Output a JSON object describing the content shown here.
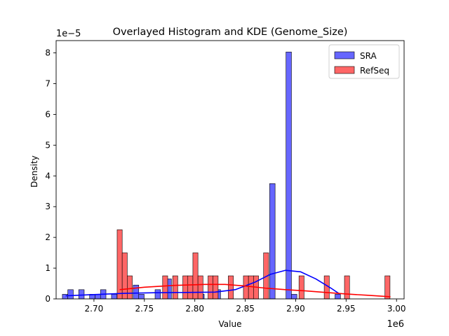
{
  "chart_data": {
    "type": "histogram",
    "title": "Overlayed Histogram and KDE (Genome_Size)",
    "xlabel": "Value",
    "ylabel": "Density",
    "x_scale_label": "1e6",
    "y_scale_label": "1e−5",
    "xlim": [
      2.6625,
      3.0075
    ],
    "ylim": [
      0,
      8.4
    ],
    "x_ticks": [
      2.7,
      2.75,
      2.8,
      2.85,
      2.9,
      2.95,
      3.0
    ],
    "x_tick_labels": [
      "2.70",
      "2.75",
      "2.80",
      "2.85",
      "2.90",
      "2.95",
      "3.00"
    ],
    "y_ticks": [
      0,
      1,
      2,
      3,
      4,
      5,
      6,
      7,
      8
    ],
    "y_tick_labels": [
      "0",
      "1",
      "2",
      "3",
      "4",
      "5",
      "6",
      "7",
      "8"
    ],
    "legend_position": "top-right",
    "grid": false,
    "series": [
      {
        "name": "SRA",
        "color": "#0000ff",
        "fill_color": "#6666ff",
        "bin_width": 0.00541,
        "bins": [
          [
            2.6714,
            0.15
          ],
          [
            2.6768,
            0.3
          ],
          [
            2.6876,
            0.3
          ],
          [
            2.6984,
            0.15
          ],
          [
            2.7038,
            0.15
          ],
          [
            2.7092,
            0.3
          ],
          [
            2.7201,
            0.15
          ],
          [
            2.7417,
            0.45
          ],
          [
            2.7471,
            0.15
          ],
          [
            2.7633,
            0.3
          ],
          [
            2.7741,
            0.65
          ],
          [
            2.7958,
            0.45
          ],
          [
            2.8012,
            0.3
          ],
          [
            2.8066,
            0.15
          ],
          [
            2.8228,
            0.3
          ],
          [
            2.8769,
            3.75
          ],
          [
            2.8931,
            8.03
          ],
          [
            2.8985,
            0.15
          ],
          [
            2.9417,
            0.15
          ]
        ],
        "kde": [
          [
            2.672,
            0.1
          ],
          [
            2.7,
            0.14
          ],
          [
            2.73,
            0.18
          ],
          [
            2.76,
            0.2
          ],
          [
            2.79,
            0.21
          ],
          [
            2.82,
            0.22
          ],
          [
            2.84,
            0.3
          ],
          [
            2.86,
            0.55
          ],
          [
            2.875,
            0.8
          ],
          [
            2.89,
            0.93
          ],
          [
            2.905,
            0.88
          ],
          [
            2.92,
            0.65
          ],
          [
            2.935,
            0.35
          ],
          [
            2.944,
            0.15
          ]
        ]
      },
      {
        "name": "RefSeq",
        "color": "#ff0000",
        "fill_color": "#ff6666",
        "bin_width": 0.00502,
        "bins": [
          [
            2.7255,
            2.25
          ],
          [
            2.7305,
            1.5
          ],
          [
            2.7355,
            0.75
          ],
          [
            2.7706,
            0.75
          ],
          [
            2.7806,
            0.75
          ],
          [
            2.7906,
            0.75
          ],
          [
            2.7956,
            0.75
          ],
          [
            2.8006,
            1.5
          ],
          [
            2.8056,
            0.75
          ],
          [
            2.8156,
            0.75
          ],
          [
            2.8206,
            0.75
          ],
          [
            2.8357,
            0.75
          ],
          [
            2.8507,
            0.75
          ],
          [
            2.8557,
            0.75
          ],
          [
            2.8607,
            0.75
          ],
          [
            2.8707,
            1.5
          ],
          [
            2.9058,
            0.75
          ],
          [
            2.9308,
            0.75
          ],
          [
            2.9509,
            0.75
          ],
          [
            2.991,
            0.75
          ]
        ],
        "kde": [
          [
            2.7255,
            0.3
          ],
          [
            2.75,
            0.38
          ],
          [
            2.78,
            0.44
          ],
          [
            2.81,
            0.47
          ],
          [
            2.83,
            0.47
          ],
          [
            2.85,
            0.42
          ],
          [
            2.87,
            0.35
          ],
          [
            2.89,
            0.3
          ],
          [
            2.91,
            0.26
          ],
          [
            2.93,
            0.21
          ],
          [
            2.95,
            0.16
          ],
          [
            2.97,
            0.12
          ],
          [
            2.994,
            0.07
          ]
        ]
      }
    ]
  }
}
